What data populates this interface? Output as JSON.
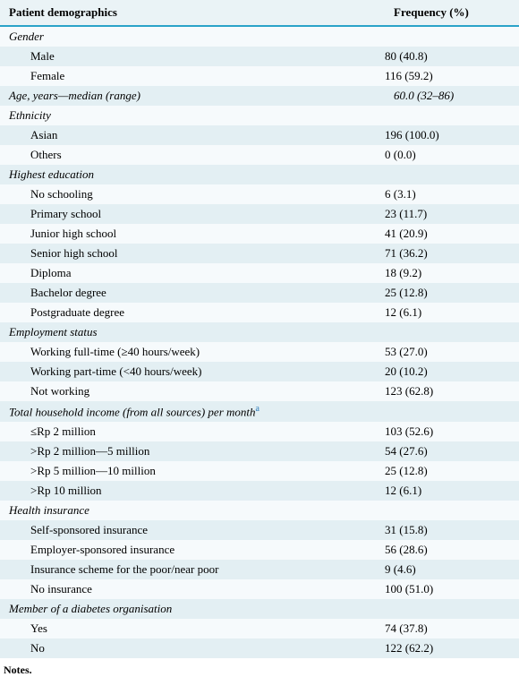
{
  "header": {
    "label": "Patient demographics",
    "freq": "Frequency (%)"
  },
  "sections": [
    {
      "title": "Gender",
      "items": [
        {
          "label": "Male",
          "freq": "80 (40.8)"
        },
        {
          "label": "Female",
          "freq": "116 (59.2)"
        }
      ]
    },
    {
      "title": "Age, years—median (range)",
      "freq": "60.0 (32–86)",
      "items": []
    },
    {
      "title": "Ethnicity",
      "items": [
        {
          "label": "Asian",
          "freq": "196 (100.0)"
        },
        {
          "label": "Others",
          "freq": "0 (0.0)"
        }
      ]
    },
    {
      "title": "Highest education",
      "items": [
        {
          "label": "No schooling",
          "freq": "6 (3.1)"
        },
        {
          "label": "Primary school",
          "freq": "23 (11.7)"
        },
        {
          "label": "Junior high school",
          "freq": "41 (20.9)"
        },
        {
          "label": "Senior high school",
          "freq": "71 (36.2)"
        },
        {
          "label": "Diploma",
          "freq": "18 (9.2)"
        },
        {
          "label": "Bachelor degree",
          "freq": "25 (12.8)"
        },
        {
          "label": "Postgraduate degree",
          "freq": "12 (6.1)"
        }
      ]
    },
    {
      "title": "Employment status",
      "items": [
        {
          "label": "Working full-time (≥40 hours/week)",
          "freq": "53 (27.0)"
        },
        {
          "label": "Working part-time (<40 hours/week)",
          "freq": "20 (10.2)"
        },
        {
          "label": "Not working",
          "freq": "123 (62.8)"
        }
      ]
    },
    {
      "title": "Total household income (from all sources) per month",
      "footnote": "a",
      "items": [
        {
          "label": "≤Rp 2 million",
          "freq": "103 (52.6)"
        },
        {
          "label": ">Rp 2 million—5 million",
          "freq": "54 (27.6)"
        },
        {
          "label": ">Rp 5 million—10 million",
          "freq": "25 (12.8)"
        },
        {
          "label": ">Rp 10 million",
          "freq": "12 (6.1)"
        }
      ]
    },
    {
      "title": "Health insurance",
      "items": [
        {
          "label": "Self-sponsored insurance",
          "freq": "31 (15.8)"
        },
        {
          "label": "Employer-sponsored insurance",
          "freq": "56 (28.6)"
        },
        {
          "label": "Insurance scheme for the poor/near poor",
          "freq": "9 (4.6)"
        },
        {
          "label": "No insurance",
          "freq": "100 (51.0)"
        }
      ]
    },
    {
      "title": "Member of a diabetes organisation",
      "items": [
        {
          "label": "Yes",
          "freq": "74 (37.8)"
        },
        {
          "label": "No",
          "freq": "122 (62.2)"
        }
      ]
    }
  ],
  "notes": {
    "label": "Notes."
  },
  "colors": {
    "row_odd": "#e3eff3",
    "row_even": "#f6fafc",
    "rule": "#2aa3c9",
    "fn": "#2b7bb9"
  }
}
